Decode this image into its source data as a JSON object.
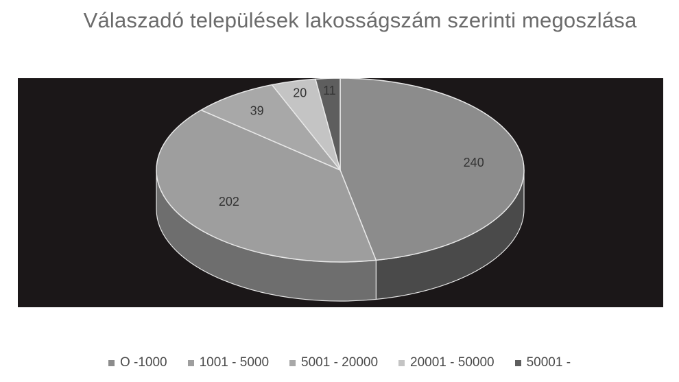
{
  "chart_data": {
    "type": "pie",
    "title": "Válaszadó települések lakosságszám szerinti megoszlása",
    "categories": [
      "O -1000",
      "1001 - 5000",
      "5001 - 20000",
      "20001 - 50000",
      "50001 -"
    ],
    "values": [
      240,
      202,
      39,
      20,
      11
    ],
    "data_labels": [
      "240",
      "202",
      "39",
      "20",
      "11"
    ],
    "colors": [
      "#8c8c8c",
      "#9e9e9e",
      "#a8a8a8",
      "#c4c4c4",
      "#5e5e5e"
    ],
    "side_colors": [
      "#4a4a4a",
      "#6e6e6e",
      "#777777",
      "#909090",
      "#3a3a3a"
    ],
    "style": "3d",
    "legend_position": "bottom",
    "background": "#1b1718"
  }
}
